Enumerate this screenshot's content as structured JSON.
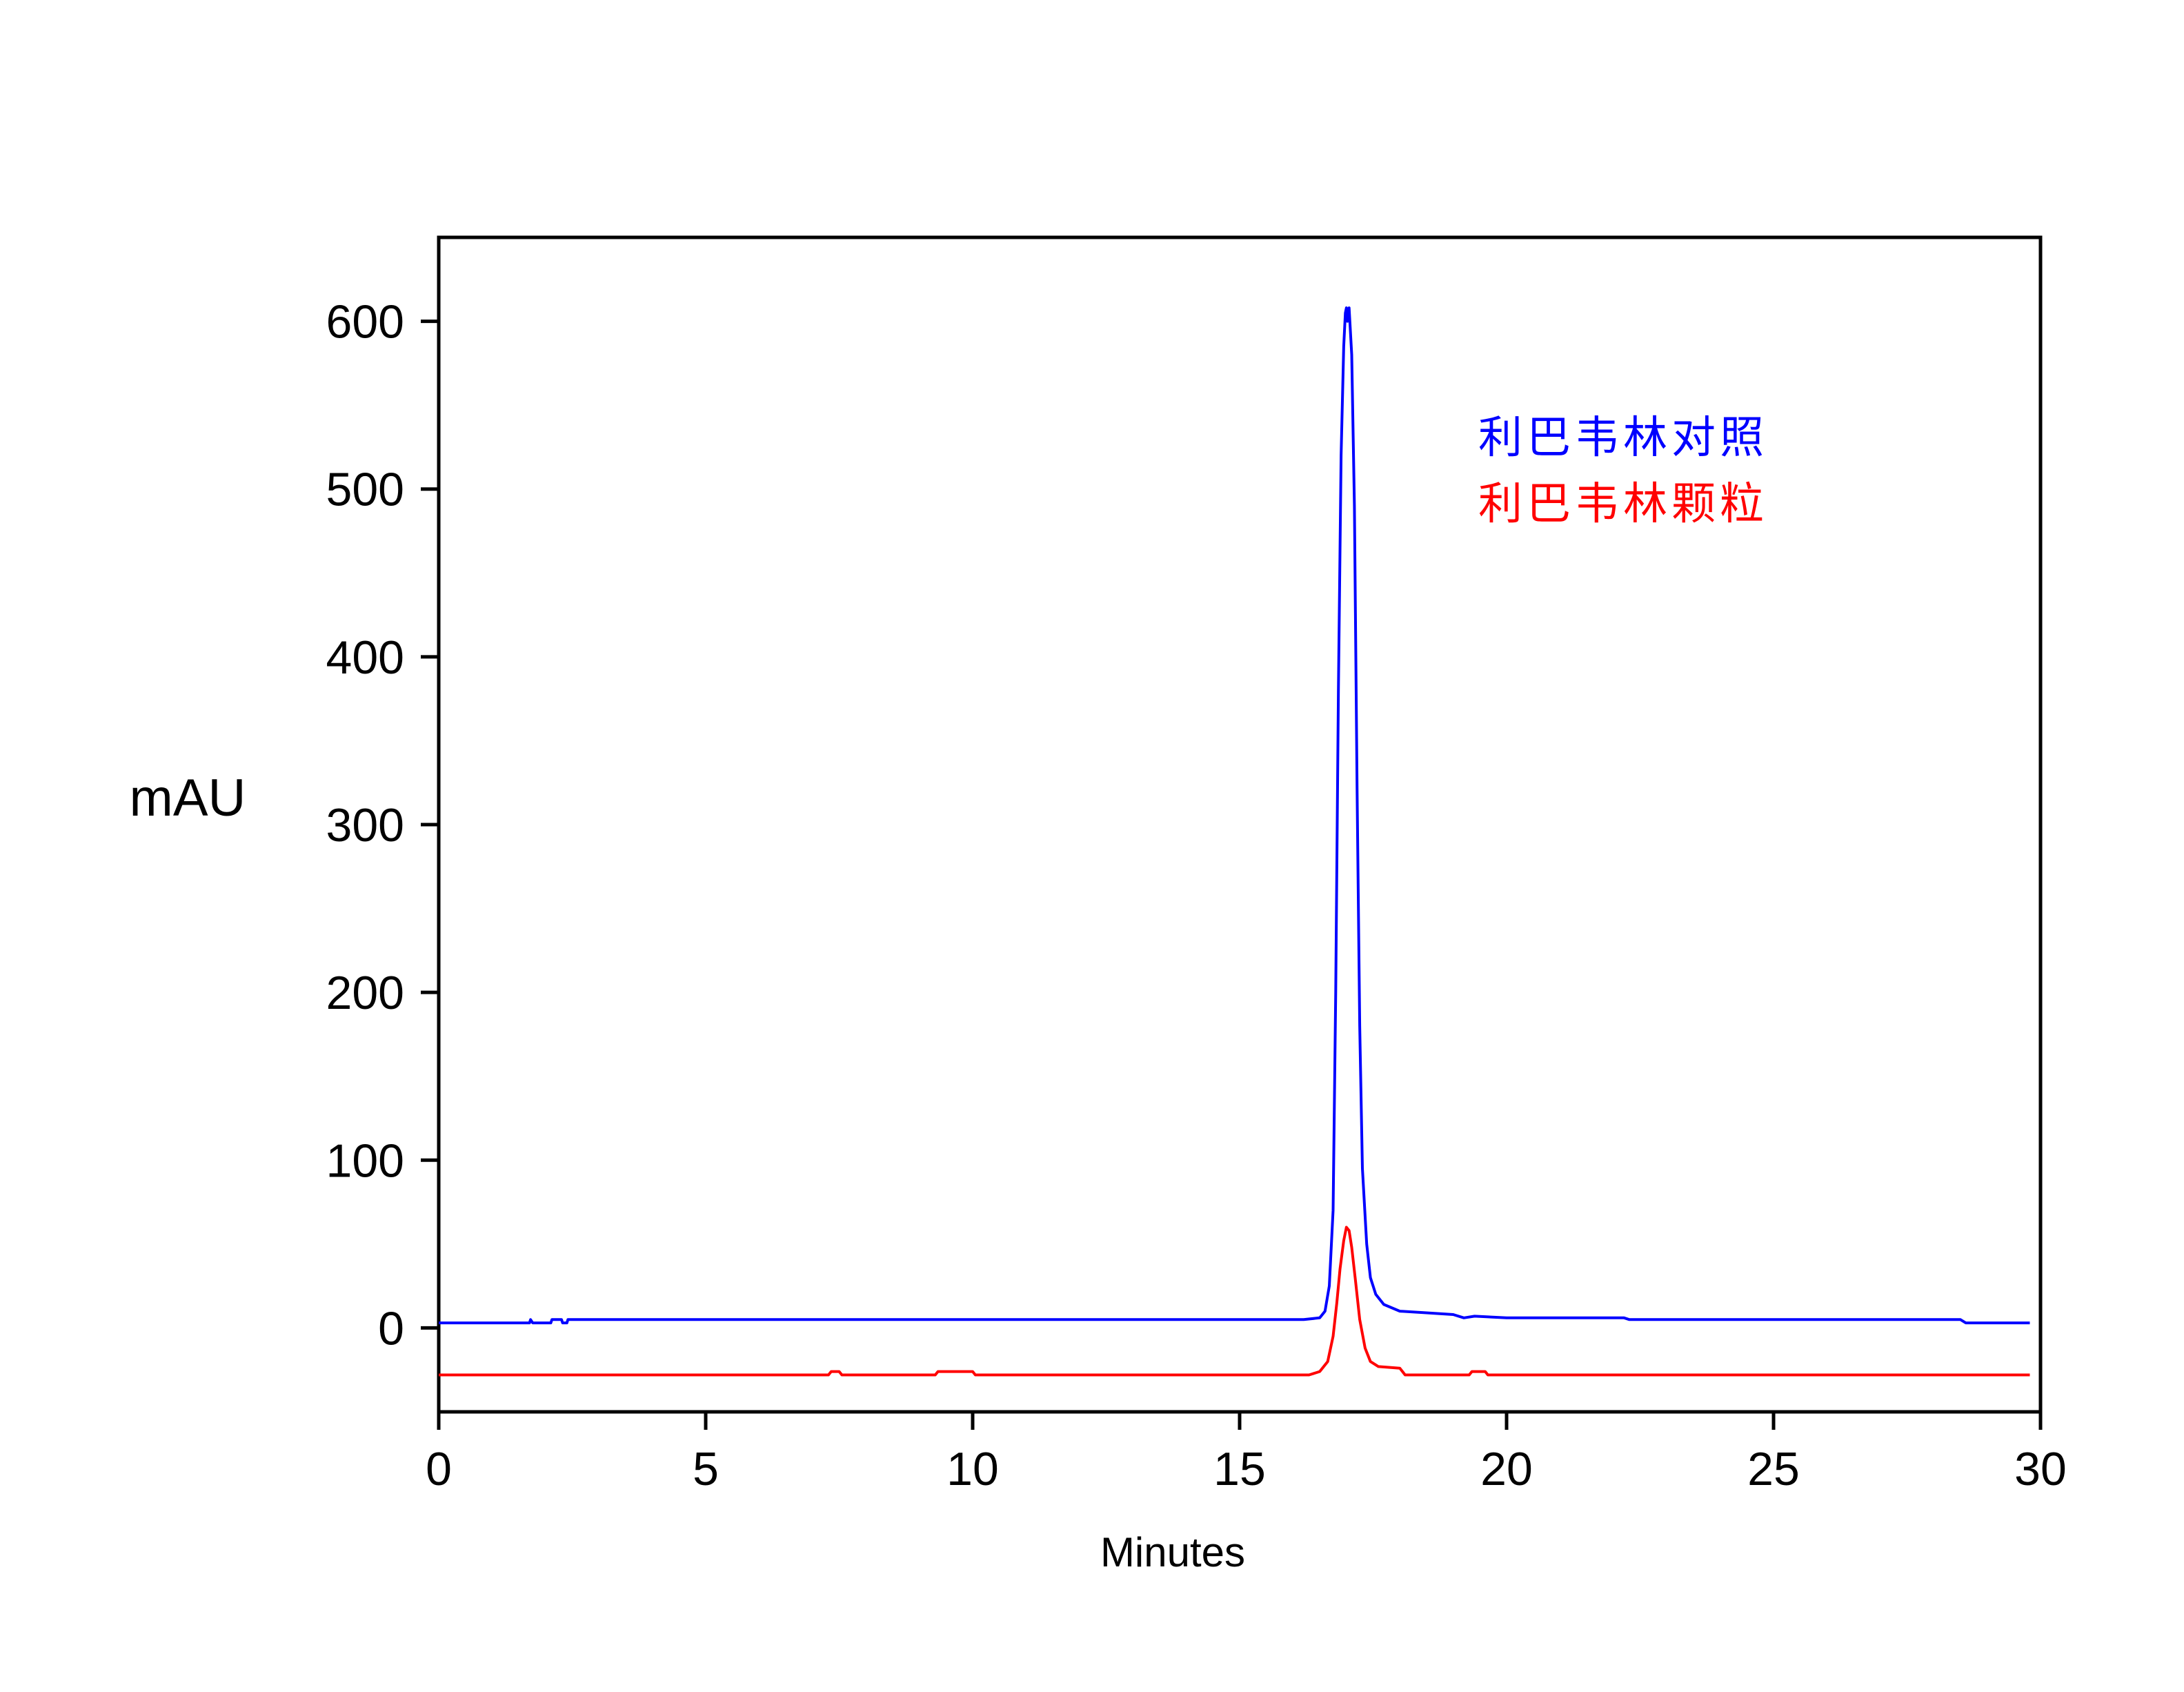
{
  "chart_data": {
    "type": "line",
    "xlabel": "Minutes",
    "ylabel": "mAU",
    "xlim": [
      0,
      30
    ],
    "ylim": [
      -50,
      650
    ],
    "x_ticks": [
      0,
      5,
      10,
      15,
      20,
      25,
      30
    ],
    "y_ticks": [
      0,
      100,
      200,
      300,
      400,
      500,
      600
    ],
    "grid": false,
    "legend_position": "top-right",
    "series": [
      {
        "name": "利巴韦林对照",
        "color": "#0000ff",
        "points": [
          [
            0.0,
            3
          ],
          [
            1.7,
            3
          ],
          [
            1.72,
            5
          ],
          [
            1.76,
            3
          ],
          [
            2.1,
            3
          ],
          [
            2.12,
            5
          ],
          [
            2.3,
            5
          ],
          [
            2.32,
            3
          ],
          [
            2.4,
            3
          ],
          [
            2.42,
            5
          ],
          [
            2.6,
            5
          ],
          [
            10.0,
            5
          ],
          [
            15.0,
            5
          ],
          [
            16.2,
            5
          ],
          [
            16.5,
            6
          ],
          [
            16.6,
            10
          ],
          [
            16.68,
            25
          ],
          [
            16.75,
            70
          ],
          [
            16.8,
            200
          ],
          [
            16.85,
            380
          ],
          [
            16.9,
            520
          ],
          [
            16.95,
            585
          ],
          [
            16.98,
            605
          ],
          [
            17.0,
            608
          ],
          [
            17.02,
            600
          ],
          [
            17.05,
            608
          ],
          [
            17.1,
            580
          ],
          [
            17.15,
            490
          ],
          [
            17.2,
            320
          ],
          [
            17.25,
            180
          ],
          [
            17.3,
            95
          ],
          [
            17.38,
            50
          ],
          [
            17.45,
            30
          ],
          [
            17.55,
            20
          ],
          [
            17.7,
            14
          ],
          [
            18.0,
            10
          ],
          [
            18.5,
            9
          ],
          [
            19.0,
            8
          ],
          [
            19.2,
            6
          ],
          [
            19.4,
            7
          ],
          [
            20.0,
            6
          ],
          [
            22.2,
            6
          ],
          [
            22.3,
            5
          ],
          [
            25.0,
            5
          ],
          [
            28.5,
            5
          ],
          [
            28.6,
            3
          ],
          [
            29.8,
            3
          ]
        ]
      },
      {
        "name": "利巴韦林颗粒",
        "color": "#ff0000",
        "points": [
          [
            0.0,
            -28
          ],
          [
            7.3,
            -28
          ],
          [
            7.35,
            -26
          ],
          [
            7.5,
            -26
          ],
          [
            7.55,
            -28
          ],
          [
            9.3,
            -28
          ],
          [
            9.35,
            -26
          ],
          [
            10.0,
            -26
          ],
          [
            10.05,
            -28
          ],
          [
            16.3,
            -28
          ],
          [
            16.5,
            -26
          ],
          [
            16.65,
            -20
          ],
          [
            16.75,
            -5
          ],
          [
            16.82,
            15
          ],
          [
            16.88,
            35
          ],
          [
            16.95,
            52
          ],
          [
            17.0,
            60
          ],
          [
            17.05,
            58
          ],
          [
            17.1,
            48
          ],
          [
            17.17,
            28
          ],
          [
            17.25,
            5
          ],
          [
            17.35,
            -12
          ],
          [
            17.45,
            -20
          ],
          [
            17.6,
            -23
          ],
          [
            18.0,
            -24
          ],
          [
            18.05,
            -26
          ],
          [
            18.1,
            -28
          ],
          [
            19.3,
            -28
          ],
          [
            19.35,
            -26
          ],
          [
            19.6,
            -26
          ],
          [
            19.65,
            -28
          ],
          [
            29.8,
            -28
          ]
        ]
      }
    ]
  }
}
